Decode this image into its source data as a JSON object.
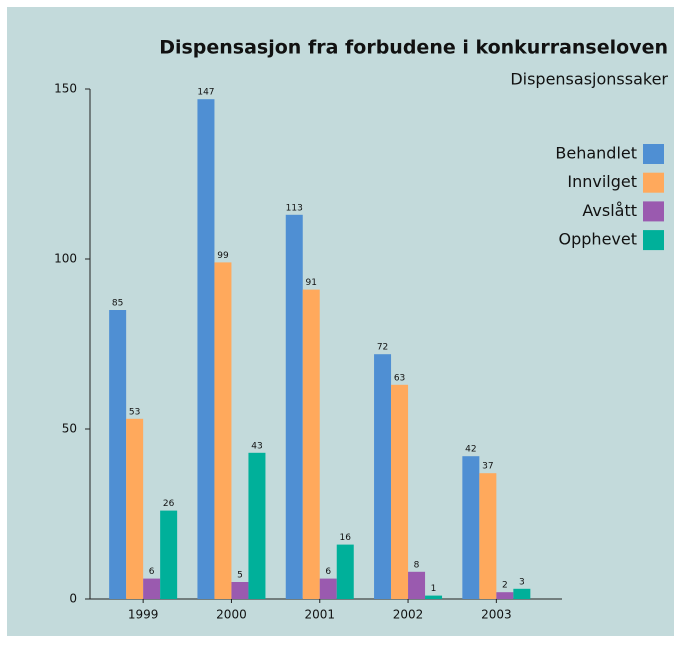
{
  "chart_data": {
    "type": "bar",
    "title": "Dispensasjon fra forbudene i konkurranseloven",
    "subtitle": "Dispensasjonssaker",
    "categories": [
      "1999",
      "2000",
      "2001",
      "2002",
      "2003"
    ],
    "series": [
      {
        "name": "Behandlet",
        "color": "#4f8fd3",
        "values": [
          85,
          147,
          113,
          72,
          42
        ]
      },
      {
        "name": "Innvilget",
        "color": "#ffa95c",
        "values": [
          53,
          99,
          91,
          63,
          37
        ]
      },
      {
        "name": "Avslått",
        "color": "#9a5aaf",
        "values": [
          6,
          5,
          6,
          8,
          2
        ]
      },
      {
        "name": "Opphevet",
        "color": "#00b09a",
        "values": [
          26,
          43,
          16,
          1,
          3
        ]
      }
    ],
    "ylim": [
      0,
      150
    ],
    "yticks": [
      0,
      50,
      100,
      150
    ],
    "grid": false,
    "legend": "upper right"
  }
}
